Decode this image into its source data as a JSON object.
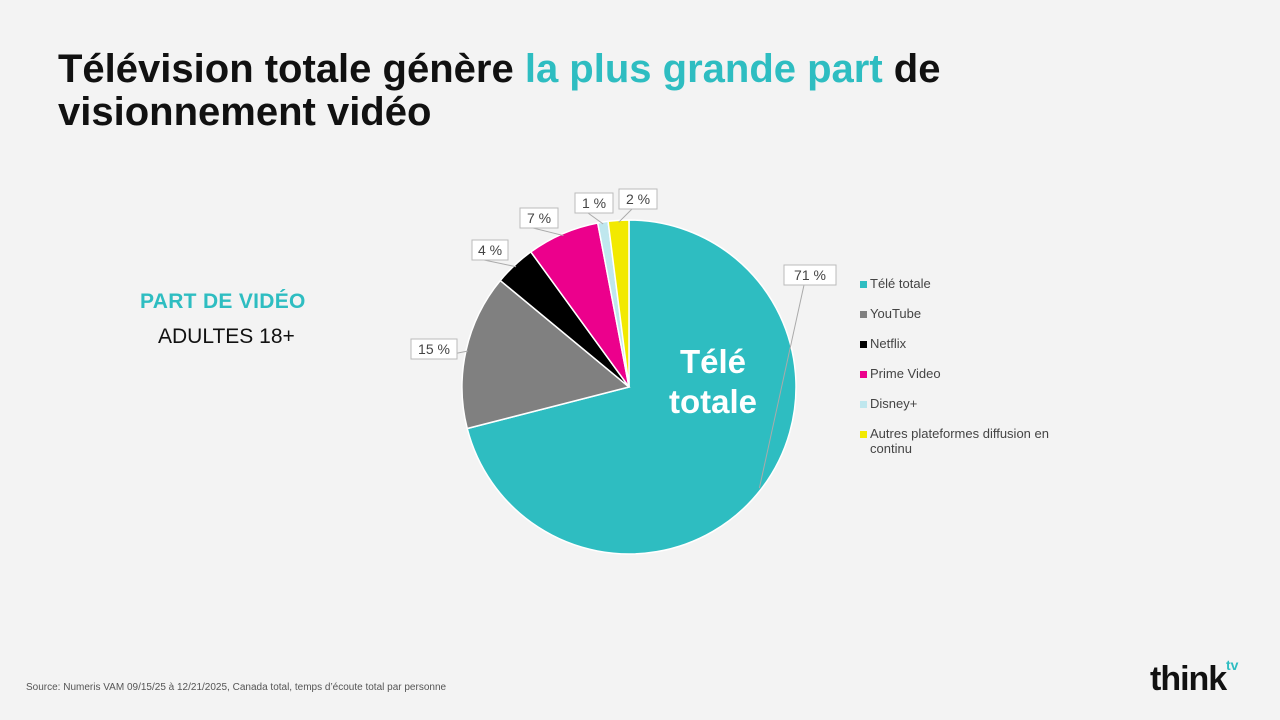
{
  "title": {
    "part1": "Télévision totale génère ",
    "accent": "la plus grande part",
    "part2": " de visionnement vidéo"
  },
  "subtitle": "PART DE VIDÉO",
  "audience": "ADULTES 18+",
  "source": "Source: Numeris VAM 09/15/25 à 12/21/2025, Canada total, temps d’écoute total par personne",
  "logo": {
    "text": "think",
    "sup": "tv"
  },
  "colors": {
    "accent": "#2ebdc1",
    "background": "#f3f3f3"
  },
  "chart_data": {
    "type": "pie",
    "center_label": "Télé totale",
    "labels": [
      "Télé totale",
      "YouTube",
      "Netflix",
      "Prime Video",
      "Disney+",
      "Autres plateformes diffusion en continu"
    ],
    "values": [
      71,
      15,
      4,
      7,
      1,
      2
    ],
    "value_labels": [
      "71 %",
      "15 %",
      "4 %",
      "7 %",
      "1 %",
      "2 %"
    ],
    "colors": [
      "#2ebdc1",
      "#808080",
      "#000000",
      "#ec008c",
      "#bfe7ee",
      "#f2e900"
    ],
    "legend_position": "right"
  }
}
